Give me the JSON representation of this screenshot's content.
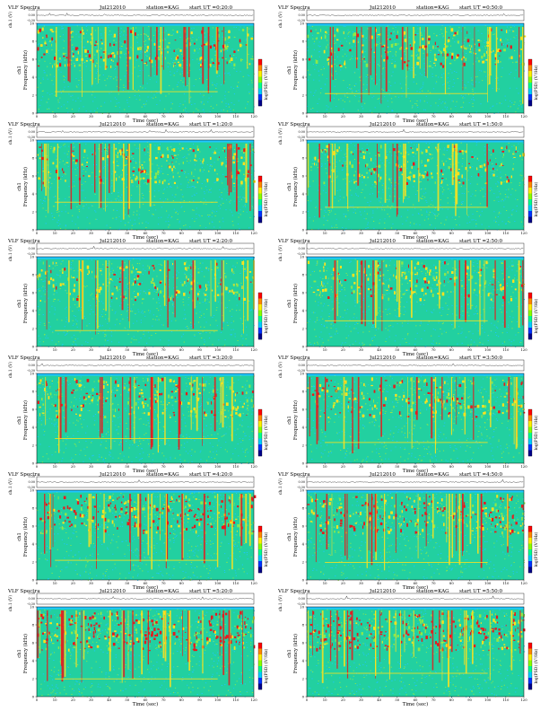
{
  "page": {
    "title": "VLF Spectra"
  },
  "colors": {
    "background": "#22d0a0",
    "noise": "#1ec6ff",
    "mid": "#8ee84a",
    "high": "#ffe21c",
    "peak": "#e8191c"
  },
  "chart_data": [
    {
      "type": "heatmap",
      "title": "VLF Spectra",
      "date": "Jul212010",
      "station": "station=KAG",
      "start_label": "start UT =0:20:0",
      "ch_label": "ch.1 (V)",
      "ch_ticks": [
        "0.30",
        "0.00",
        "-0.30"
      ],
      "ylabel_prefix": "ch1",
      "ylabel": "Frequency (kHz)",
      "xlabel": "Time (sec)",
      "colorbar_label": "log(PSD) (V²/Hz)",
      "xlim": [
        0,
        120
      ],
      "ylim": [
        0,
        10
      ],
      "x_ticks": [
        "0",
        "10",
        "20",
        "30",
        "40",
        "50",
        "60",
        "70",
        "80",
        "90",
        "100",
        "110",
        "120"
      ],
      "y_ticks": [
        "0",
        "2",
        "4",
        "6",
        "8",
        "10"
      ],
      "intensity": 0.55
    },
    {
      "type": "heatmap",
      "title": "VLF Spectra",
      "date": "Jul212010",
      "station": "station=KAG",
      "start_label": "start UT =0:50:0",
      "ch_label": "ch.1 (V)",
      "ch_ticks": [
        "0.30",
        "0.00",
        "-0.30"
      ],
      "ylabel_prefix": "ch1",
      "ylabel": "Frequency (kHz)",
      "xlabel": "Time (sec)",
      "colorbar_label": "log(PSD) (V²/Hz)",
      "xlim": [
        0,
        120
      ],
      "ylim": [
        0,
        10
      ],
      "x_ticks": [
        "0",
        "10",
        "20",
        "30",
        "40",
        "50",
        "60",
        "70",
        "80",
        "90",
        "100",
        "110",
        "120"
      ],
      "y_ticks": [
        "0",
        "2",
        "4",
        "6",
        "8",
        "10"
      ],
      "intensity": 0.5
    },
    {
      "type": "heatmap",
      "title": "VLF Spectra",
      "date": "Jul212010",
      "station": "station=KAG",
      "start_label": "start UT =1:20:0",
      "ch_label": "ch.1 (V)",
      "ch_ticks": [
        "0.30",
        "0.00",
        "-0.30"
      ],
      "ylabel_prefix": "ch1",
      "ylabel": "Frequency (kHz)",
      "xlabel": "Time (sec)",
      "colorbar_label": "log(PSD) (V²/Hz)",
      "xlim": [
        0,
        120
      ],
      "ylim": [
        0,
        10
      ],
      "x_ticks": [
        "0",
        "10",
        "20",
        "30",
        "40",
        "50",
        "60",
        "70",
        "80",
        "90",
        "100",
        "110",
        "120"
      ],
      "y_ticks": [
        "0",
        "2",
        "4",
        "6",
        "8",
        "10"
      ],
      "intensity": 0.45
    },
    {
      "type": "heatmap",
      "title": "VLF Spectra",
      "date": "Jul212010",
      "station": "station=KAG",
      "start_label": "start UT =1:50:0",
      "ch_label": "ch.1 (V)",
      "ch_ticks": [
        "0.30",
        "0.00",
        "-0.30"
      ],
      "ylabel_prefix": "ch1",
      "ylabel": "Frequency (kHz)",
      "xlabel": "Time (sec)",
      "colorbar_label": "log(PSD) (V²/Hz)",
      "xlim": [
        0,
        120
      ],
      "ylim": [
        0,
        10
      ],
      "x_ticks": [
        "0",
        "10",
        "20",
        "30",
        "40",
        "50",
        "60",
        "70",
        "80",
        "90",
        "100",
        "110",
        "120"
      ],
      "y_ticks": [
        "0",
        "2",
        "4",
        "6",
        "8",
        "10"
      ],
      "intensity": 0.45
    },
    {
      "type": "heatmap",
      "title": "VLF Spectra",
      "date": "Jul212010",
      "station": "station=KAG",
      "start_label": "start UT =2:20:0",
      "ch_label": "ch.1 (V)",
      "ch_ticks": [
        "0.30",
        "0.00",
        "-0.30"
      ],
      "ylabel_prefix": "ch1",
      "ylabel": "Frequency (kHz)",
      "xlabel": "Time (sec)",
      "colorbar_label": "log(PSD) (V²/Hz)",
      "xlim": [
        0,
        120
      ],
      "ylim": [
        0,
        10
      ],
      "x_ticks": [
        "0",
        "10",
        "20",
        "30",
        "40",
        "50",
        "60",
        "70",
        "80",
        "90",
        "100",
        "110",
        "120"
      ],
      "y_ticks": [
        "0",
        "2",
        "4",
        "6",
        "8",
        "10"
      ],
      "intensity": 0.4
    },
    {
      "type": "heatmap",
      "title": "VLF Spectra",
      "date": "Jul212010",
      "station": "station=KAG",
      "start_label": "start UT =2:50:0",
      "ch_label": "ch.1 (V)",
      "ch_ticks": [
        "0.30",
        "0.00",
        "-0.30"
      ],
      "ylabel_prefix": "ch1",
      "ylabel": "Frequency (kHz)",
      "xlabel": "Time (sec)",
      "colorbar_label": "log(PSD) (V²/Hz)",
      "xlim": [
        0,
        120
      ],
      "ylim": [
        0,
        10
      ],
      "x_ticks": [
        "0",
        "10",
        "20",
        "30",
        "40",
        "50",
        "60",
        "70",
        "80",
        "90",
        "100",
        "110",
        "120"
      ],
      "y_ticks": [
        "0",
        "2",
        "4",
        "6",
        "8",
        "10"
      ],
      "intensity": 0.45
    },
    {
      "type": "heatmap",
      "title": "VLF Spectra",
      "date": "Jul212010",
      "station": "station=KAG",
      "start_label": "start UT =3:20:0",
      "ch_label": "ch.1 (V)",
      "ch_ticks": [
        "0.30",
        "0.00",
        "-0.30"
      ],
      "ylabel_prefix": "ch1",
      "ylabel": "Frequency (kHz)",
      "xlabel": "Time (sec)",
      "colorbar_label": "log(PSD) (V²/Hz)",
      "xlim": [
        0,
        120
      ],
      "ylim": [
        0,
        10
      ],
      "x_ticks": [
        "0",
        "10",
        "20",
        "30",
        "40",
        "50",
        "60",
        "70",
        "80",
        "90",
        "100",
        "110",
        "120"
      ],
      "y_ticks": [
        "0",
        "2",
        "4",
        "6",
        "8",
        "10"
      ],
      "intensity": 0.55
    },
    {
      "type": "heatmap",
      "title": "VLF Spectra",
      "date": "Jul212010",
      "station": "station=KAG",
      "start_label": "start UT =3:50:0",
      "ch_label": "ch.1 (V)",
      "ch_ticks": [
        "0.30",
        "0.00",
        "-0.30"
      ],
      "ylabel_prefix": "ch1",
      "ylabel": "Frequency (kHz)",
      "xlabel": "Time (sec)",
      "colorbar_label": "log(PSD) (V²/Hz)",
      "xlim": [
        0,
        120
      ],
      "ylim": [
        0,
        10
      ],
      "x_ticks": [
        "0",
        "10",
        "20",
        "30",
        "40",
        "50",
        "60",
        "70",
        "80",
        "90",
        "100",
        "110",
        "120"
      ],
      "y_ticks": [
        "0",
        "2",
        "4",
        "6",
        "8",
        "10"
      ],
      "intensity": 0.55
    },
    {
      "type": "heatmap",
      "title": "VLF Spectra",
      "date": "Jul212010",
      "station": "station=KAG",
      "start_label": "start UT =4:20:0",
      "ch_label": "ch.1 (V)",
      "ch_ticks": [
        "0.30",
        "0.00",
        "-0.30"
      ],
      "ylabel_prefix": "ch1",
      "ylabel": "Frequency (kHz)",
      "xlabel": "Time (sec)",
      "colorbar_label": "log(PSD) (V²/Hz)",
      "xlim": [
        0,
        120
      ],
      "ylim": [
        0,
        10
      ],
      "x_ticks": [
        "0",
        "10",
        "20",
        "30",
        "40",
        "50",
        "60",
        "70",
        "80",
        "90",
        "100",
        "110",
        "120"
      ],
      "y_ticks": [
        "0",
        "2",
        "4",
        "6",
        "8",
        "10"
      ],
      "intensity": 0.75
    },
    {
      "type": "heatmap",
      "title": "VLF Spectra",
      "date": "Jul212010",
      "station": "station=KAG",
      "start_label": "start UT =4:50:0",
      "ch_label": "ch.1 (V)",
      "ch_ticks": [
        "0.30",
        "0.00",
        "-0.30"
      ],
      "ylabel_prefix": "ch1",
      "ylabel": "Frequency (kHz)",
      "xlabel": "Time (sec)",
      "colorbar_label": "log(PSD) (V²/Hz)",
      "xlim": [
        0,
        120
      ],
      "ylim": [
        0,
        10
      ],
      "x_ticks": [
        "0",
        "10",
        "20",
        "30",
        "40",
        "50",
        "60",
        "70",
        "80",
        "90",
        "100",
        "110",
        "120"
      ],
      "y_ticks": [
        "0",
        "2",
        "4",
        "6",
        "8",
        "10"
      ],
      "intensity": 0.8
    },
    {
      "type": "heatmap",
      "title": "VLF Spectra",
      "date": "Jul212010",
      "station": "station=KAG",
      "start_label": "start UT =5:20:0",
      "ch_label": "ch.1 (V)",
      "ch_ticks": [
        "0.30",
        "0.00",
        "-0.30"
      ],
      "ylabel_prefix": "ch1",
      "ylabel": "Frequency (kHz)",
      "xlabel": "Time (sec)",
      "colorbar_label": "log(PSD) (V²/Hz)",
      "xlim": [
        0,
        120
      ],
      "ylim": [
        0,
        10
      ],
      "x_ticks": [
        "0",
        "10",
        "20",
        "30",
        "40",
        "50",
        "60",
        "70",
        "80",
        "90",
        "100",
        "110",
        "120"
      ],
      "y_ticks": [
        "0",
        "2",
        "4",
        "6",
        "8",
        "10"
      ],
      "intensity": 0.95
    },
    {
      "type": "heatmap",
      "title": "VLF Spectra",
      "date": "Jul212010",
      "station": "station=KAG",
      "start_label": "start UT =5:50:0",
      "ch_label": "ch.1 (V)",
      "ch_ticks": [
        "0.30",
        "0.00",
        "-0.30"
      ],
      "ylabel_prefix": "ch1",
      "ylabel": "Frequency (kHz)",
      "xlabel": "Time (sec)",
      "colorbar_label": "log(PSD) (V²/Hz)",
      "xlim": [
        0,
        120
      ],
      "ylim": [
        0,
        10
      ],
      "x_ticks": [
        "0",
        "10",
        "20",
        "30",
        "40",
        "50",
        "60",
        "70",
        "80",
        "90",
        "100",
        "110",
        "120"
      ],
      "y_ticks": [
        "0",
        "2",
        "4",
        "6",
        "8",
        "10"
      ],
      "intensity": 0.95
    }
  ]
}
